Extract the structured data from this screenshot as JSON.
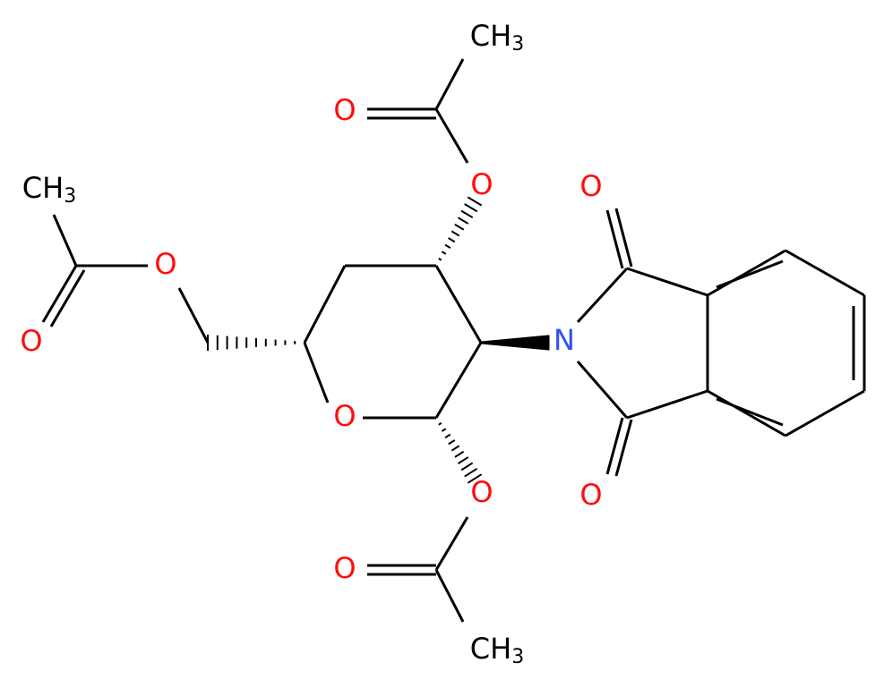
{
  "atoms": [
    {
      "text": "CH",
      "sub": "3"
    },
    {
      "text": "O"
    },
    {
      "text": "O"
    },
    {
      "text": "CH",
      "sub": "3"
    },
    {
      "text": "O"
    },
    {
      "text": "O"
    },
    {
      "text": "O"
    },
    {
      "text": "N"
    },
    {
      "text": "O"
    },
    {
      "text": "O"
    },
    {
      "text": "O"
    },
    {
      "text": "O"
    },
    {
      "text": "CH",
      "sub": "3"
    }
  ]
}
